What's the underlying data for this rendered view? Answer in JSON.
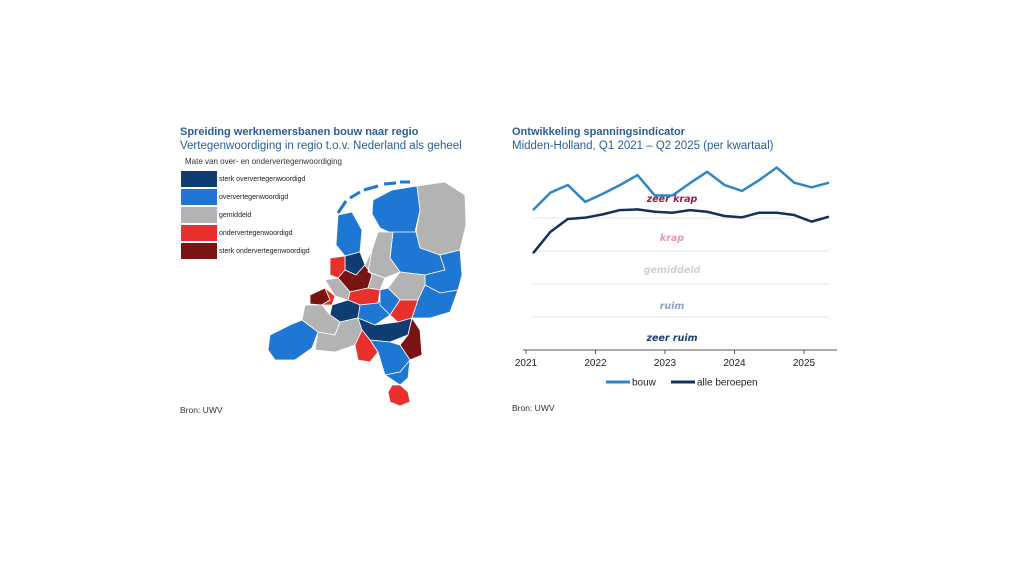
{
  "map_panel": {
    "title": "Spreiding werknemersbanen bouw naar regio",
    "subtitle": "Vertegenwoordiging in regio t.o.v. Nederland als geheel",
    "legend_title": "Mate van over- en ondervertegenwoordiging",
    "legend": [
      {
        "label": "sterk oververtegenwoordigd",
        "color": "#0f3d73"
      },
      {
        "label": "oververtegenwoordigd",
        "color": "#1f77d4"
      },
      {
        "label": "gemiddeld",
        "color": "#b3b3b3"
      },
      {
        "label": "ondervertegenwoordigd",
        "color": "#e8302c"
      },
      {
        "label": "sterk ondervertegenwoordigd",
        "color": "#7a1414"
      }
    ],
    "source": "Bron: UWV"
  },
  "chart_data": {
    "type": "line",
    "title": "Ontwikkeling spanningsindicator",
    "subtitle": "Midden-Holland, Q1 2021 – Q2 2025 (per kwartaal)",
    "xlabel": "",
    "ylabel": "",
    "x_ticks": [
      "2021",
      "2022",
      "2023",
      "2024",
      "2025"
    ],
    "x": [
      "2021Q1",
      "2021Q2",
      "2021Q3",
      "2021Q4",
      "2022Q1",
      "2022Q2",
      "2022Q3",
      "2022Q4",
      "2023Q1",
      "2023Q2",
      "2023Q3",
      "2023Q4",
      "2024Q1",
      "2024Q2",
      "2024Q3",
      "2024Q4",
      "2025Q1",
      "2025Q2"
    ],
    "ylim": [
      0,
      5.6
    ],
    "bands": [
      {
        "label": "zeer ruim",
        "color": "#1f3f7a"
      },
      {
        "label": "ruim",
        "color": "#8aa4cc"
      },
      {
        "label": "gemiddeld",
        "color": "#d0d0d0"
      },
      {
        "label": "krap",
        "color": "#e49ab0"
      },
      {
        "label": "zeer krap",
        "color": "#a3173f"
      }
    ],
    "gridlines": [
      1,
      2,
      3,
      4
    ],
    "series": [
      {
        "name": "bouw",
        "color": "#2f86c4",
        "values": [
          4.24,
          4.77,
          5.0,
          4.49,
          4.73,
          5.0,
          5.3,
          4.68,
          4.68,
          5.05,
          5.4,
          5.0,
          4.82,
          5.15,
          5.53,
          5.07,
          4.93,
          5.07
        ]
      },
      {
        "name": "alle beroepen",
        "color": "#13305e",
        "values": [
          2.93,
          3.58,
          3.97,
          4.01,
          4.11,
          4.24,
          4.26,
          4.19,
          4.16,
          4.24,
          4.19,
          4.06,
          4.02,
          4.16,
          4.16,
          4.09,
          3.89,
          4.04
        ]
      }
    ],
    "legend_position": "bottom",
    "source": "Bron: UWV"
  }
}
